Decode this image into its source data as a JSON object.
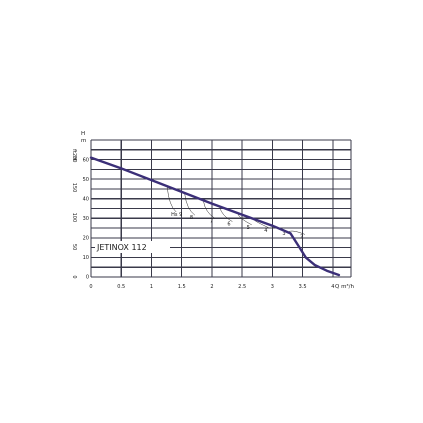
{
  "chart_data": {
    "type": "line",
    "model_label": "JETINOX 112",
    "y_axis": {
      "label": "H",
      "unit": "m",
      "ticks": [
        "0",
        "10",
        "20",
        "30",
        "40",
        "50",
        "60"
      ],
      "ylim": [
        0,
        70
      ],
      "secondary_label": "H",
      "secondary_unit": "ft",
      "secondary_ticks": [
        "0",
        "50",
        "100",
        "150",
        "200"
      ],
      "secondary_max": 229.7
    },
    "x_axis": {
      "unit": "Q m³/h",
      "ticks": [
        "0",
        "0.5",
        "1",
        "1.5",
        "2",
        "2.5",
        "3",
        "3.5",
        "4"
      ],
      "xlim": [
        0,
        4.3
      ]
    },
    "series": [
      {
        "x": [
          0,
          0.5,
          1,
          1.5,
          2,
          2.5,
          3,
          3.3,
          3.45,
          3.55,
          3.7,
          3.9,
          4.1
        ],
        "y": [
          61,
          55.5,
          49.5,
          43.5,
          37.5,
          31.8,
          26.2,
          22.3,
          15,
          10,
          6.2,
          3.2,
          1
        ]
      }
    ],
    "operating_points": [
      {
        "label": "Hs 9",
        "x": 1.26
      },
      {
        "label": "8",
        "x": 1.55
      },
      {
        "label": "7",
        "x": 1.86
      },
      {
        "label": "6",
        "x": 2.13
      },
      {
        "label": "5",
        "x": 2.43
      },
      {
        "label": "4",
        "x": 2.7
      },
      {
        "label": "3",
        "x": 2.98
      },
      {
        "label": "2",
        "x": 3.25
      }
    ]
  }
}
